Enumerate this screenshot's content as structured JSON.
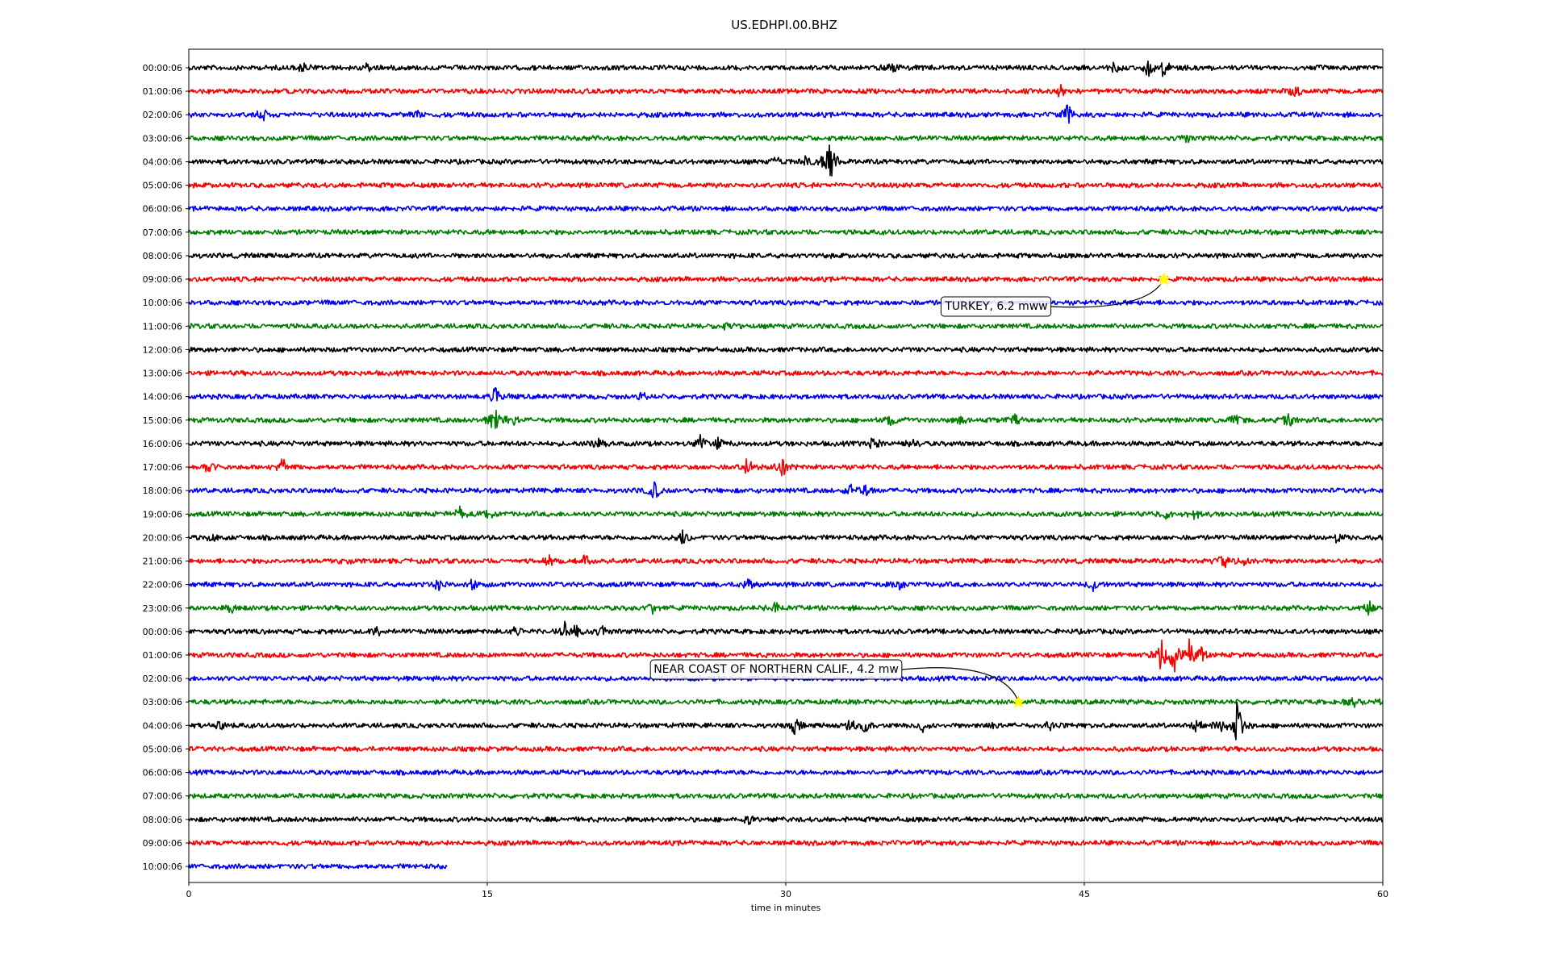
{
  "chart_data": {
    "type": "line",
    "title": "US.EDHPI.00.BHZ",
    "xlabel": "time in minutes",
    "ylabel": "",
    "xlim": [
      0,
      60
    ],
    "x_ticks": [
      0,
      15,
      30,
      45,
      60
    ],
    "grid": "vertical",
    "trace_colors": [
      "#000000",
      "#ff0000",
      "#0000ff",
      "#007f00"
    ],
    "rows": [
      {
        "label": "00:00:06",
        "end_minute": 60,
        "bursts": [
          {
            "t": 5.7,
            "a": 0.5
          },
          {
            "t": 9.0,
            "a": 0.3
          },
          {
            "t": 35.3,
            "a": 0.45
          },
          {
            "t": 46.5,
            "a": 0.3
          },
          {
            "t": 48.2,
            "a": 0.6
          },
          {
            "t": 49.0,
            "a": 0.65
          }
        ]
      },
      {
        "label": "01:00:06",
        "end_minute": 60,
        "bursts": [
          {
            "t": 43.8,
            "a": 0.35
          },
          {
            "t": 55.6,
            "a": 0.6
          }
        ]
      },
      {
        "label": "02:00:06",
        "end_minute": 60,
        "bursts": [
          {
            "t": 3.7,
            "a": 0.55
          },
          {
            "t": 11.5,
            "a": 0.25
          },
          {
            "t": 44.2,
            "a": 0.8
          }
        ]
      },
      {
        "label": "03:00:06",
        "end_minute": 60,
        "bursts": [
          {
            "t": 50.1,
            "a": 0.4
          }
        ]
      },
      {
        "label": "04:00:06",
        "end_minute": 60,
        "bursts": [
          {
            "t": 29.6,
            "a": 0.45
          },
          {
            "t": 31.0,
            "a": 0.3
          },
          {
            "t": 32.2,
            "a": 2.0
          }
        ]
      },
      {
        "label": "05:00:06",
        "end_minute": 60,
        "bursts": []
      },
      {
        "label": "06:00:06",
        "end_minute": 60,
        "bursts": []
      },
      {
        "label": "07:00:06",
        "end_minute": 60,
        "bursts": []
      },
      {
        "label": "08:00:06",
        "end_minute": 60,
        "bursts": []
      },
      {
        "label": "09:00:06",
        "end_minute": 60,
        "bursts": []
      },
      {
        "label": "10:00:06",
        "end_minute": 60,
        "bursts": []
      },
      {
        "label": "11:00:06",
        "end_minute": 60,
        "bursts": [
          {
            "t": 27.0,
            "a": 0.25
          }
        ]
      },
      {
        "label": "12:00:06",
        "end_minute": 60,
        "bursts": []
      },
      {
        "label": "13:00:06",
        "end_minute": 60,
        "bursts": []
      },
      {
        "label": "14:00:06",
        "end_minute": 60,
        "bursts": [
          {
            "t": 15.5,
            "a": 0.9
          },
          {
            "t": 22.8,
            "a": 0.25
          }
        ]
      },
      {
        "label": "15:00:06",
        "end_minute": 60,
        "bursts": [
          {
            "t": 15.4,
            "a": 1.6
          },
          {
            "t": 16.3,
            "a": 0.5
          },
          {
            "t": 35.2,
            "a": 0.5
          },
          {
            "t": 38.8,
            "a": 0.3
          },
          {
            "t": 41.5,
            "a": 0.3
          },
          {
            "t": 52.6,
            "a": 0.45
          },
          {
            "t": 55.3,
            "a": 0.5
          }
        ]
      },
      {
        "label": "16:00:06",
        "end_minute": 60,
        "bursts": [
          {
            "t": 20.5,
            "a": 0.4
          },
          {
            "t": 25.7,
            "a": 0.45
          },
          {
            "t": 26.6,
            "a": 0.35
          },
          {
            "t": 34.4,
            "a": 0.55
          },
          {
            "t": 36.3,
            "a": 0.3
          }
        ]
      },
      {
        "label": "17:00:06",
        "end_minute": 60,
        "bursts": [
          {
            "t": 1.0,
            "a": 0.45
          },
          {
            "t": 4.7,
            "a": 0.6
          },
          {
            "t": 28.1,
            "a": 0.7
          },
          {
            "t": 29.8,
            "a": 0.9
          }
        ]
      },
      {
        "label": "18:00:06",
        "end_minute": 60,
        "bursts": [
          {
            "t": 23.4,
            "a": 0.7
          },
          {
            "t": 33.3,
            "a": 0.5
          },
          {
            "t": 34.0,
            "a": 0.45
          }
        ]
      },
      {
        "label": "19:00:06",
        "end_minute": 60,
        "bursts": [
          {
            "t": 13.6,
            "a": 0.4
          },
          {
            "t": 15.1,
            "a": 0.55
          },
          {
            "t": 49.1,
            "a": 0.3
          },
          {
            "t": 50.6,
            "a": 0.4
          }
        ]
      },
      {
        "label": "20:00:06",
        "end_minute": 60,
        "bursts": [
          {
            "t": 1.2,
            "a": 0.25
          },
          {
            "t": 24.8,
            "a": 0.7
          },
          {
            "t": 57.7,
            "a": 0.35
          }
        ]
      },
      {
        "label": "21:00:06",
        "end_minute": 60,
        "bursts": [
          {
            "t": 7.8,
            "a": 0.25
          },
          {
            "t": 18.1,
            "a": 0.35
          },
          {
            "t": 20.0,
            "a": 0.6
          },
          {
            "t": 52.0,
            "a": 0.6
          },
          {
            "t": 53.0,
            "a": 0.3
          }
        ]
      },
      {
        "label": "22:00:06",
        "end_minute": 60,
        "bursts": [
          {
            "t": 12.5,
            "a": 0.3
          },
          {
            "t": 14.3,
            "a": 0.4
          },
          {
            "t": 28.1,
            "a": 0.35
          },
          {
            "t": 35.6,
            "a": 0.5
          },
          {
            "t": 45.5,
            "a": 0.5
          }
        ]
      },
      {
        "label": "23:00:06",
        "end_minute": 60,
        "bursts": [
          {
            "t": 2.2,
            "a": 0.3
          },
          {
            "t": 23.3,
            "a": 0.35
          },
          {
            "t": 29.5,
            "a": 0.5
          },
          {
            "t": 59.3,
            "a": 0.45
          }
        ]
      },
      {
        "label": "00:00:06",
        "end_minute": 60,
        "bursts": [
          {
            "t": 9.5,
            "a": 0.35
          },
          {
            "t": 16.4,
            "a": 0.25
          },
          {
            "t": 18.9,
            "a": 0.55
          },
          {
            "t": 19.5,
            "a": 0.5
          },
          {
            "t": 20.8,
            "a": 0.5
          }
        ]
      },
      {
        "label": "01:00:06",
        "end_minute": 60,
        "bursts": [
          {
            "t": 48.9,
            "a": 1.9
          },
          {
            "t": 49.5,
            "a": 1.1
          },
          {
            "t": 50.3,
            "a": 1.3
          },
          {
            "t": 50.9,
            "a": 0.4
          }
        ]
      },
      {
        "label": "02:00:06",
        "end_minute": 60,
        "bursts": []
      },
      {
        "label": "03:00:06",
        "end_minute": 60,
        "bursts": [
          {
            "t": 58.5,
            "a": 0.3
          },
          {
            "t": 59.8,
            "a": 0.35
          }
        ]
      },
      {
        "label": "04:00:06",
        "end_minute": 60,
        "bursts": [
          {
            "t": 1.5,
            "a": 0.35
          },
          {
            "t": 30.5,
            "a": 0.55
          },
          {
            "t": 33.2,
            "a": 0.5
          },
          {
            "t": 34.0,
            "a": 0.45
          },
          {
            "t": 36.9,
            "a": 0.4
          },
          {
            "t": 40.5,
            "a": 0.3
          },
          {
            "t": 43.3,
            "a": 0.35
          },
          {
            "t": 50.7,
            "a": 0.45
          },
          {
            "t": 51.8,
            "a": 0.45
          },
          {
            "t": 52.7,
            "a": 2.0
          }
        ]
      },
      {
        "label": "05:00:06",
        "end_minute": 60,
        "bursts": []
      },
      {
        "label": "06:00:06",
        "end_minute": 60,
        "bursts": []
      },
      {
        "label": "07:00:06",
        "end_minute": 60,
        "bursts": []
      },
      {
        "label": "08:00:06",
        "end_minute": 60,
        "bursts": [
          {
            "t": 28.1,
            "a": 0.25
          }
        ]
      },
      {
        "label": "09:00:06",
        "end_minute": 60,
        "bursts": []
      },
      {
        "label": "10:00:06",
        "end_minute": 13.0,
        "bursts": []
      }
    ],
    "events": [
      {
        "label": "TURKEY, 6.2 mww",
        "row": 9,
        "minute": 49.0,
        "marker_color": "#ffff00"
      },
      {
        "label": "NEAR COAST OF NORTHERN CALIF., 4.2 mw",
        "row": 27,
        "minute": 41.7,
        "marker_color": "#ffff00"
      }
    ]
  }
}
